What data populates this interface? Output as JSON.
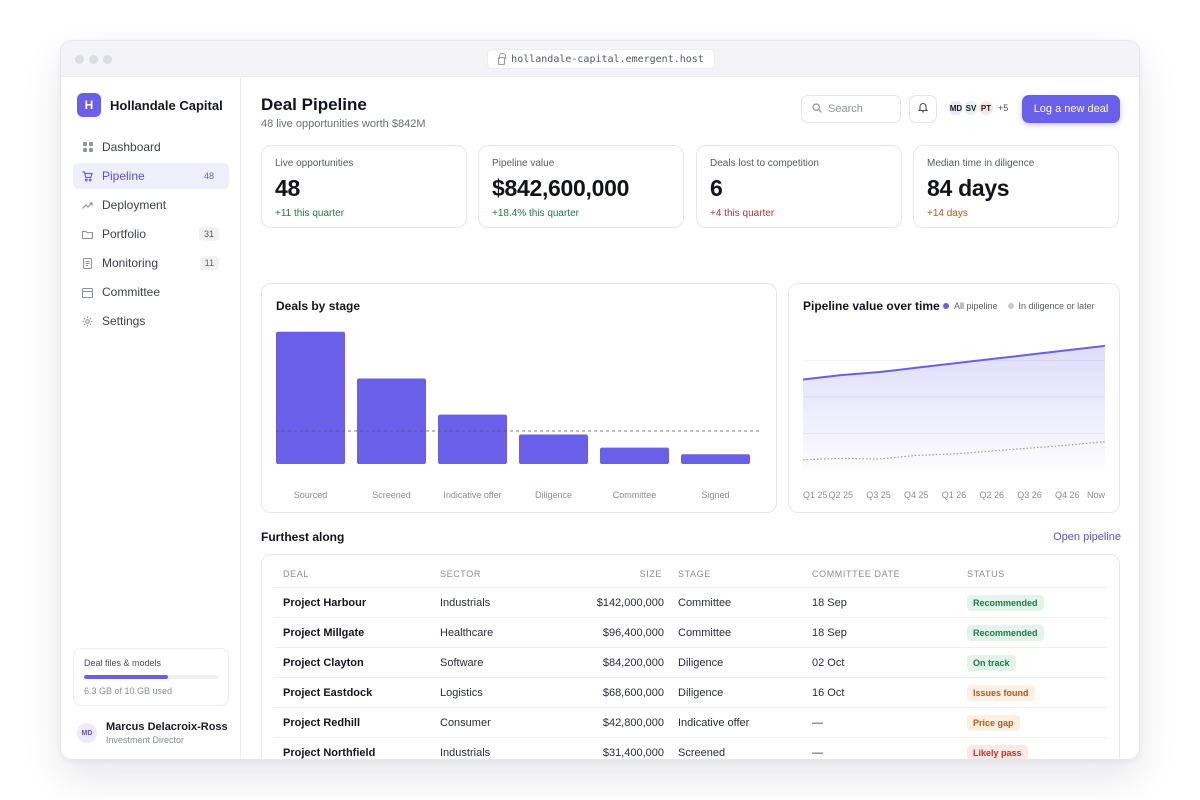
{
  "browser": {
    "url": "hollandale-capital.emergent.host"
  },
  "brand": {
    "mark": "H",
    "name": "Hollandale Capital"
  },
  "nav": [
    {
      "label": "Dashboard",
      "icon": "grid-icon",
      "count": ""
    },
    {
      "label": "Pipeline",
      "icon": "cart-icon",
      "count": "48",
      "active": true
    },
    {
      "label": "Deployment",
      "icon": "trend-icon",
      "count": ""
    },
    {
      "label": "Portfolio",
      "icon": "folder-icon",
      "count": "31"
    },
    {
      "label": "Monitoring",
      "icon": "document-icon",
      "count": "11"
    },
    {
      "label": "Committee",
      "icon": "calendar-icon",
      "count": ""
    },
    {
      "label": "Settings",
      "icon": "gear-icon",
      "count": ""
    }
  ],
  "storage": {
    "title": "Deal files & models",
    "used_text": "6.3 GB of 10 GB used",
    "used_fraction": 0.63
  },
  "user": {
    "initials": "MD",
    "name": "Marcus Delacroix-Ross",
    "role": "Investment Director"
  },
  "header": {
    "title": "Deal Pipeline",
    "subtitle": "48 live opportunities worth $842M",
    "search_placeholder": "Search",
    "avatars": [
      {
        "initials": "MD",
        "color": "#e9e8fb"
      },
      {
        "initials": "SV",
        "color": "#e3f3ea"
      },
      {
        "initials": "PT",
        "color": "#fbe6e6"
      }
    ],
    "avatars_more": "+5",
    "cta_label": "Log a new deal"
  },
  "kpis": [
    {
      "label": "Live opportunities",
      "value": "48",
      "delta": "+11 this quarter",
      "tone": "#1f7a4c"
    },
    {
      "label": "Pipeline value",
      "value": "$842,600,000",
      "delta": "+18.4% this quarter",
      "tone": "#1f7a4c"
    },
    {
      "label": "Deals lost to competition",
      "value": "6",
      "delta": "+4 this quarter",
      "tone": "#c2352b"
    },
    {
      "label": "Median time in diligence",
      "value": "84 days",
      "delta": "+14 days",
      "tone": "#c2550f"
    }
  ],
  "chart_data": [
    {
      "type": "bar",
      "title": "Deals by stage",
      "categories": [
        "Sourced",
        "Screened",
        "Indicative offer",
        "Diligence",
        "Committee",
        "Signed"
      ],
      "values": [
        34,
        22,
        12.7,
        7.6,
        4.2,
        2.5
      ],
      "reference_line": 8.5,
      "ylim": [
        0,
        36
      ],
      "color": "#6a5fe8",
      "grid": false
    },
    {
      "type": "area",
      "title": "Pipeline value over time",
      "x": [
        "Q1 25",
        "Q2 25",
        "Q3 25",
        "Q4 25",
        "Q1 26",
        "Q2 26",
        "Q3 26",
        "Q4 26",
        "Now"
      ],
      "series": [
        {
          "name": "All pipeline",
          "color": "#6a5fe8",
          "values": [
            62,
            65,
            67,
            70,
            73,
            76,
            79,
            82,
            85
          ]
        },
        {
          "name": "In diligence or later",
          "color": "#c9c9d4",
          "values": [
            7,
            8,
            7.5,
            10,
            11,
            13,
            15,
            17,
            19.5
          ]
        }
      ],
      "ylim": [
        0,
        100
      ],
      "legend": "top-right",
      "grid": true
    }
  ],
  "table": {
    "title": "Furthest along",
    "link": "Open pipeline",
    "columns": [
      "DEAL",
      "SECTOR",
      "SIZE",
      "STAGE",
      "COMMITTEE DATE",
      "STATUS"
    ],
    "rows": [
      {
        "deal": "Project Harbour",
        "sector": "Industrials",
        "size": "$142,000,000",
        "stage": "Committee",
        "date": "18 Sep",
        "status": "Recommended",
        "status_bg": "#e4f4ea",
        "status_fg": "#1f7a4c"
      },
      {
        "deal": "Project Millgate",
        "sector": "Healthcare",
        "size": "$96,400,000",
        "stage": "Committee",
        "date": "18 Sep",
        "status": "Recommended",
        "status_bg": "#e4f4ea",
        "status_fg": "#1f7a4c"
      },
      {
        "deal": "Project Clayton",
        "sector": "Software",
        "size": "$84,200,000",
        "stage": "Diligence",
        "date": "02 Oct",
        "status": "On track",
        "status_bg": "#e4f4ea",
        "status_fg": "#1f7a4c"
      },
      {
        "deal": "Project Eastdock",
        "sector": "Logistics",
        "size": "$68,600,000",
        "stage": "Diligence",
        "date": "16 Oct",
        "status": "Issues found",
        "status_bg": "#fdf0e2",
        "status_fg": "#c2550f"
      },
      {
        "deal": "Project Redhill",
        "sector": "Consumer",
        "size": "$42,800,000",
        "stage": "Indicative offer",
        "date": "—",
        "status": "Price gap",
        "status_bg": "#fdf0e2",
        "status_fg": "#c2550f"
      },
      {
        "deal": "Project Northfield",
        "sector": "Industrials",
        "size": "$31,400,000",
        "stage": "Screened",
        "date": "—",
        "status": "Likely pass",
        "status_bg": "#fde8e7",
        "status_fg": "#c2352b"
      }
    ]
  }
}
